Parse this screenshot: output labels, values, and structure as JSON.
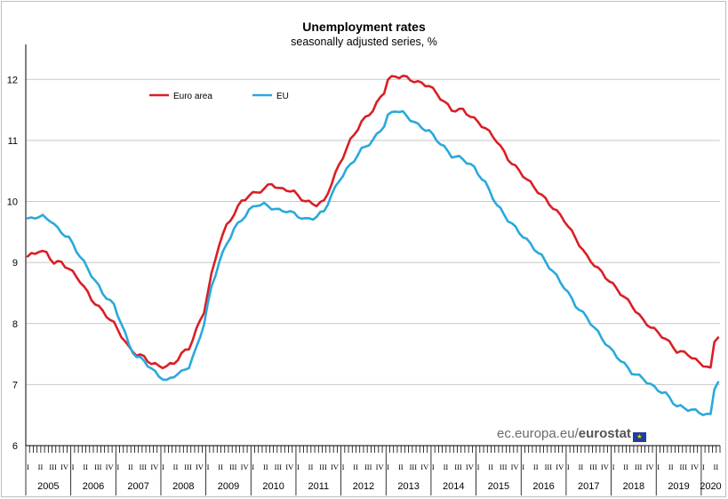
{
  "chart_data": {
    "type": "line",
    "title": "Unemployment rates",
    "subtitle": "seasonally adjusted series, %",
    "xlabel": "",
    "ylabel": "",
    "ylim": [
      6,
      12.5
    ],
    "yticks": [
      6,
      7,
      8,
      9,
      10,
      11,
      12
    ],
    "grid": true,
    "legend_position": "top-left",
    "x_start": "2005-01",
    "x_end": "2020-05",
    "quarter_labels": [
      "I",
      "II",
      "III",
      "IV"
    ],
    "year_labels": [
      "2005",
      "2006",
      "2007",
      "2008",
      "2009",
      "2010",
      "2011",
      "2012",
      "2013",
      "2014",
      "2015",
      "2016",
      "2017",
      "2018",
      "2019",
      "2020"
    ],
    "series": [
      {
        "name": "Euro area",
        "color": "#d91f26",
        "points": [
          [
            "2005-01",
            9.1
          ],
          [
            "2005-03",
            9.15
          ],
          [
            "2005-04",
            9.2
          ],
          [
            "2005-06",
            9.15
          ],
          [
            "2005-08",
            9.0
          ],
          [
            "2005-10",
            9.0
          ],
          [
            "2005-12",
            8.9
          ],
          [
            "2006-03",
            8.7
          ],
          [
            "2006-06",
            8.4
          ],
          [
            "2006-09",
            8.2
          ],
          [
            "2006-12",
            8.0
          ],
          [
            "2007-02",
            7.8
          ],
          [
            "2007-04",
            7.6
          ],
          [
            "2007-06",
            7.5
          ],
          [
            "2007-08",
            7.45
          ],
          [
            "2007-10",
            7.35
          ],
          [
            "2007-12",
            7.3
          ],
          [
            "2008-02",
            7.3
          ],
          [
            "2008-04",
            7.35
          ],
          [
            "2008-06",
            7.5
          ],
          [
            "2008-08",
            7.6
          ],
          [
            "2008-10",
            7.9
          ],
          [
            "2008-12",
            8.2
          ],
          [
            "2009-02",
            8.8
          ],
          [
            "2009-04",
            9.3
          ],
          [
            "2009-06",
            9.6
          ],
          [
            "2009-08",
            9.8
          ],
          [
            "2009-10",
            10.0
          ],
          [
            "2009-12",
            10.1
          ],
          [
            "2010-02",
            10.15
          ],
          [
            "2010-04",
            10.2
          ],
          [
            "2010-06",
            10.3
          ],
          [
            "2010-08",
            10.2
          ],
          [
            "2010-10",
            10.2
          ],
          [
            "2010-12",
            10.15
          ],
          [
            "2011-03",
            10.0
          ],
          [
            "2011-06",
            9.95
          ],
          [
            "2011-08",
            10.0
          ],
          [
            "2011-10",
            10.3
          ],
          [
            "2011-12",
            10.6
          ],
          [
            "2012-03",
            11.0
          ],
          [
            "2012-06",
            11.3
          ],
          [
            "2012-09",
            11.5
          ],
          [
            "2012-12",
            11.8
          ],
          [
            "2013-01",
            12.0
          ],
          [
            "2013-03",
            12.05
          ],
          [
            "2013-05",
            12.05
          ],
          [
            "2013-07",
            12.0
          ],
          [
            "2013-09",
            11.95
          ],
          [
            "2013-12",
            11.9
          ],
          [
            "2014-03",
            11.7
          ],
          [
            "2014-06",
            11.5
          ],
          [
            "2014-09",
            11.5
          ],
          [
            "2014-12",
            11.35
          ],
          [
            "2015-03",
            11.2
          ],
          [
            "2015-06",
            11.0
          ],
          [
            "2015-09",
            10.7
          ],
          [
            "2015-12",
            10.5
          ],
          [
            "2016-03",
            10.3
          ],
          [
            "2016-06",
            10.1
          ],
          [
            "2016-09",
            9.9
          ],
          [
            "2016-12",
            9.7
          ],
          [
            "2017-03",
            9.4
          ],
          [
            "2017-06",
            9.1
          ],
          [
            "2017-09",
            8.9
          ],
          [
            "2017-12",
            8.7
          ],
          [
            "2018-03",
            8.5
          ],
          [
            "2018-06",
            8.3
          ],
          [
            "2018-09",
            8.05
          ],
          [
            "2018-12",
            7.9
          ],
          [
            "2019-03",
            7.75
          ],
          [
            "2019-06",
            7.55
          ],
          [
            "2019-09",
            7.5
          ],
          [
            "2019-12",
            7.35
          ],
          [
            "2020-02",
            7.3
          ],
          [
            "2020-03",
            7.25
          ],
          [
            "2020-04",
            7.7
          ],
          [
            "2020-05",
            7.8
          ]
        ]
      },
      {
        "name": "EU",
        "color": "#29a9dc",
        "points": [
          [
            "2005-01",
            9.7
          ],
          [
            "2005-03",
            9.75
          ],
          [
            "2005-05",
            9.75
          ],
          [
            "2005-07",
            9.7
          ],
          [
            "2005-09",
            9.55
          ],
          [
            "2005-12",
            9.4
          ],
          [
            "2006-03",
            9.1
          ],
          [
            "2006-06",
            8.8
          ],
          [
            "2006-09",
            8.5
          ],
          [
            "2006-12",
            8.3
          ],
          [
            "2007-02",
            8.0
          ],
          [
            "2007-04",
            7.65
          ],
          [
            "2007-06",
            7.45
          ],
          [
            "2007-08",
            7.4
          ],
          [
            "2007-10",
            7.25
          ],
          [
            "2007-12",
            7.15
          ],
          [
            "2008-02",
            7.05
          ],
          [
            "2008-04",
            7.15
          ],
          [
            "2008-06",
            7.2
          ],
          [
            "2008-08",
            7.3
          ],
          [
            "2008-10",
            7.6
          ],
          [
            "2008-12",
            8.0
          ],
          [
            "2009-02",
            8.6
          ],
          [
            "2009-04",
            9.0
          ],
          [
            "2009-06",
            9.3
          ],
          [
            "2009-08",
            9.55
          ],
          [
            "2009-10",
            9.7
          ],
          [
            "2009-12",
            9.85
          ],
          [
            "2010-02",
            9.95
          ],
          [
            "2010-04",
            9.95
          ],
          [
            "2010-06",
            9.9
          ],
          [
            "2010-08",
            9.85
          ],
          [
            "2010-10",
            9.85
          ],
          [
            "2010-12",
            9.8
          ],
          [
            "2011-03",
            9.7
          ],
          [
            "2011-06",
            9.75
          ],
          [
            "2011-08",
            9.85
          ],
          [
            "2011-10",
            10.1
          ],
          [
            "2011-12",
            10.35
          ],
          [
            "2012-03",
            10.6
          ],
          [
            "2012-06",
            10.85
          ],
          [
            "2012-09",
            11.0
          ],
          [
            "2012-12",
            11.25
          ],
          [
            "2013-01",
            11.4
          ],
          [
            "2013-03",
            11.5
          ],
          [
            "2013-05",
            11.45
          ],
          [
            "2013-07",
            11.35
          ],
          [
            "2013-09",
            11.25
          ],
          [
            "2013-12",
            11.15
          ],
          [
            "2014-03",
            10.95
          ],
          [
            "2014-06",
            10.75
          ],
          [
            "2014-09",
            10.7
          ],
          [
            "2014-12",
            10.55
          ],
          [
            "2015-03",
            10.3
          ],
          [
            "2015-06",
            9.95
          ],
          [
            "2015-09",
            9.7
          ],
          [
            "2015-12",
            9.5
          ],
          [
            "2016-03",
            9.3
          ],
          [
            "2016-06",
            9.1
          ],
          [
            "2016-09",
            8.85
          ],
          [
            "2016-12",
            8.6
          ],
          [
            "2017-03",
            8.3
          ],
          [
            "2017-06",
            8.1
          ],
          [
            "2017-09",
            7.85
          ],
          [
            "2017-12",
            7.6
          ],
          [
            "2018-03",
            7.4
          ],
          [
            "2018-06",
            7.2
          ],
          [
            "2018-09",
            7.1
          ],
          [
            "2018-12",
            6.95
          ],
          [
            "2019-03",
            6.85
          ],
          [
            "2019-06",
            6.65
          ],
          [
            "2019-09",
            6.6
          ],
          [
            "2019-12",
            6.55
          ],
          [
            "2020-02",
            6.5
          ],
          [
            "2020-03",
            6.5
          ],
          [
            "2020-04",
            6.95
          ],
          [
            "2020-05",
            7.05
          ]
        ]
      }
    ]
  },
  "credit": {
    "prefix": "ec.europa.eu/",
    "brand": "eurostat"
  }
}
